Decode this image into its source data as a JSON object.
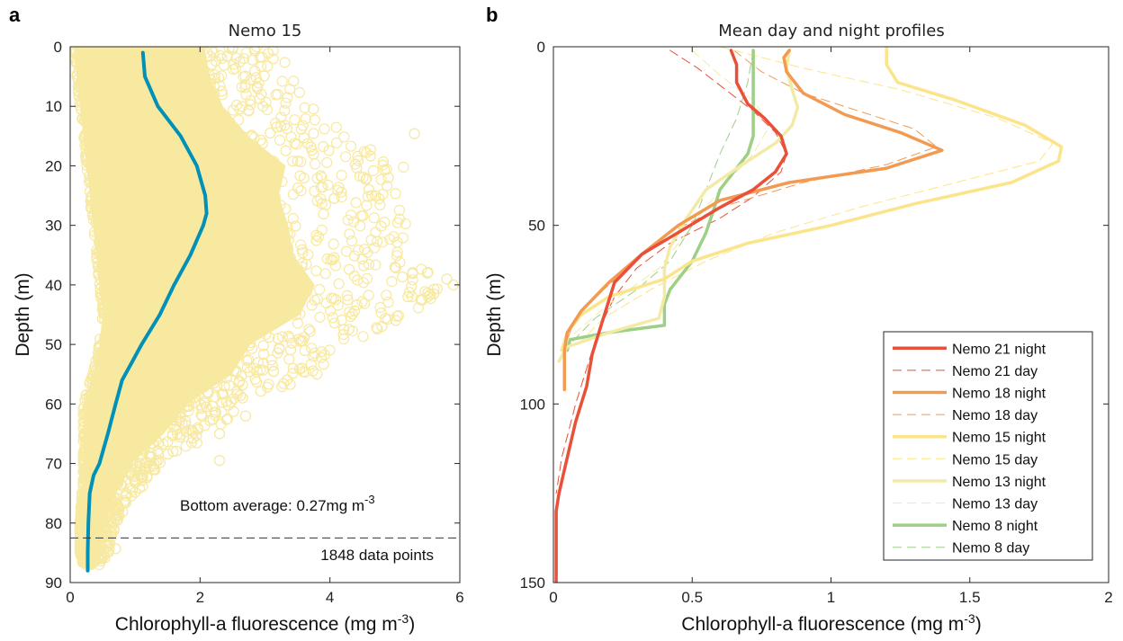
{
  "panel_labels": [
    "a",
    "b"
  ],
  "chart_data": [
    {
      "type": "scatter",
      "panel": "a",
      "title": "Nemo 15",
      "xlabel": "Chlorophyll-a fluorescence (mg m",
      "xlabel_sup": "-3",
      "xlabel_tail": ")",
      "ylabel": "Depth (m)",
      "xlim": [
        0,
        6
      ],
      "ylim": [
        90,
        0
      ],
      "xticks": [
        "0",
        "2",
        "4",
        "6"
      ],
      "yticks": [
        "0",
        "10",
        "20",
        "30",
        "40",
        "50",
        "60",
        "70",
        "80",
        "90"
      ],
      "y_reversed": true,
      "scatter_color": "#f8e9a1",
      "line_color": "#0090b8",
      "mean_profile": {
        "depth": [
          1,
          5,
          10,
          15,
          20,
          25,
          28,
          30,
          35,
          40,
          45,
          50,
          53,
          56,
          60,
          65,
          70,
          72,
          75,
          80,
          85,
          88
        ],
        "value": [
          1.12,
          1.15,
          1.35,
          1.7,
          1.95,
          2.08,
          2.1,
          2.05,
          1.85,
          1.6,
          1.38,
          1.1,
          0.95,
          0.8,
          0.7,
          0.58,
          0.45,
          0.36,
          0.3,
          0.28,
          0.27,
          0.27
        ]
      },
      "scatter_envelope": {
        "depth": [
          0,
          5,
          10,
          15,
          20,
          25,
          30,
          35,
          40,
          45,
          50,
          55,
          58,
          60,
          65,
          70,
          73,
          75,
          80,
          85,
          87
        ],
        "min": [
          0.05,
          0.1,
          0.15,
          0.2,
          0.25,
          0.3,
          0.35,
          0.4,
          0.45,
          0.5,
          0.45,
          0.35,
          0.25,
          0.2,
          0.2,
          0.2,
          0.2,
          0.18,
          0.15,
          0.15,
          0.2
        ],
        "max": [
          3.3,
          3.4,
          3.7,
          4.3,
          5.2,
          5.0,
          5.2,
          5.3,
          5.8,
          5.4,
          4.2,
          3.8,
          3.2,
          2.8,
          2.2,
          1.4,
          1.2,
          1.0,
          0.7,
          0.6,
          0.45
        ]
      },
      "outliers": [
        [
          5.3,
          14.6
        ],
        [
          5.9,
          40
        ],
        [
          5.8,
          39
        ],
        [
          5.6,
          41.5
        ],
        [
          5.5,
          38
        ],
        [
          5.2,
          42
        ],
        [
          4.9,
          22
        ],
        [
          4.7,
          25
        ],
        [
          4.6,
          24
        ],
        [
          3.8,
          55
        ],
        [
          3.2,
          49
        ],
        [
          2.7,
          62
        ],
        [
          2.3,
          69.5
        ],
        [
          2.3,
          65
        ],
        [
          0.7,
          84.3
        ],
        [
          5.4,
          42.5
        ],
        [
          5.0,
          37
        ],
        [
          4.8,
          47
        ]
      ],
      "bottom_line_depth": 82.5,
      "annotation_avg_prefix": "Bottom average: 0.27mg m",
      "annotation_avg_sup": "-3",
      "annotation_count": "1848 data points"
    },
    {
      "type": "line",
      "panel": "b",
      "title": "Mean day and night profiles",
      "xlabel": "Chlorophyll-a fluorescence (mg m",
      "xlabel_sup": "-3",
      "xlabel_tail": ")",
      "ylabel": "Depth (m)",
      "xlim": [
        0,
        2
      ],
      "ylim": [
        150,
        0
      ],
      "xticks": [
        "0",
        "0.5",
        "1",
        "1.5",
        "2"
      ],
      "yticks": [
        "0",
        "50",
        "100",
        "150"
      ],
      "y_reversed": true,
      "legend_position": "bottom-right",
      "series": [
        {
          "name": "Nemo 21 night",
          "color": "#e8503a",
          "style": "solid",
          "width": 3.5,
          "x": [
            0.64,
            0.66,
            0.66,
            0.7,
            0.76,
            0.82,
            0.84,
            0.8,
            0.72,
            0.6,
            0.45,
            0.32,
            0.22,
            0.18,
            0.14,
            0.12,
            0.08,
            0.05,
            0.02,
            0.01,
            0.01,
            0.01,
            0.01
          ],
          "y": [
            1,
            5,
            10,
            16,
            20,
            25,
            30,
            35,
            40,
            45,
            52,
            58,
            66,
            76,
            86,
            95,
            105,
            115,
            125,
            130,
            135,
            140,
            150
          ]
        },
        {
          "name": "Nemo 21 day",
          "color": "#e8503a",
          "style": "dash",
          "width": 1,
          "x": [
            0.42,
            0.52,
            0.62,
            0.72,
            0.8,
            0.84,
            0.82,
            0.72,
            0.6,
            0.42,
            0.3,
            0.22,
            0.16,
            0.12,
            0.08,
            0.03,
            0.01
          ],
          "y": [
            1,
            6,
            12,
            18,
            24,
            30,
            35,
            42,
            48,
            55,
            62,
            70,
            80,
            90,
            100,
            115,
            125
          ]
        },
        {
          "name": "Nemo 18 night",
          "color": "#f29a52",
          "style": "solid",
          "width": 3.5,
          "x": [
            0.85,
            0.83,
            0.84,
            0.9,
            1.05,
            1.25,
            1.4,
            1.2,
            0.85,
            0.6,
            0.45,
            0.32,
            0.2,
            0.1,
            0.05,
            0.04,
            0.04,
            0.04
          ],
          "y": [
            1,
            3,
            7,
            13,
            19,
            24,
            29,
            34,
            38,
            43,
            50,
            58,
            66,
            74,
            80,
            85,
            90,
            96
          ]
        },
        {
          "name": "Nemo 18 day",
          "color": "#f29a52",
          "style": "dash",
          "width": 1,
          "x": [
            0.65,
            0.75,
            0.9,
            1.1,
            1.3,
            1.38,
            1.2,
            0.9,
            0.6,
            0.42,
            0.3,
            0.18,
            0.08,
            0.04
          ],
          "y": [
            1,
            7,
            13,
            18,
            23,
            28,
            33,
            38,
            45,
            52,
            60,
            68,
            76,
            84
          ]
        },
        {
          "name": "Nemo 15 night",
          "color": "#fbe48a",
          "style": "solid",
          "width": 3.5,
          "x": [
            1.2,
            1.2,
            1.24,
            1.45,
            1.7,
            1.83,
            1.82,
            1.65,
            1.3,
            1.0,
            0.7,
            0.5,
            0.4,
            0.2,
            0.1,
            0.05,
            0.03
          ],
          "y": [
            0,
            5,
            10,
            15,
            22,
            28,
            32,
            38,
            44,
            50,
            55,
            60,
            65,
            70,
            75,
            80,
            85
          ]
        },
        {
          "name": "Nemo 15 day",
          "color": "#fbe48a",
          "style": "dash",
          "width": 1,
          "x": [
            0.6,
            0.9,
            1.25,
            1.6,
            1.8,
            1.75,
            1.45,
            1.1,
            0.8,
            0.55,
            0.35,
            0.18,
            0.08
          ],
          "y": [
            0,
            6,
            12,
            20,
            27,
            32,
            38,
            45,
            52,
            60,
            68,
            76,
            84
          ]
        },
        {
          "name": "Nemo 13 night",
          "color": "#f3eba5",
          "style": "solid",
          "width": 3.5,
          "x": [
            0.85,
            0.84,
            0.86,
            0.88,
            0.86,
            0.8,
            0.68,
            0.55,
            0.48,
            0.42,
            0.4,
            0.4,
            0.4,
            0.38,
            0.2,
            0.05,
            0.02
          ],
          "y": [
            1,
            6,
            12,
            17,
            22,
            27,
            33,
            40,
            48,
            56,
            62,
            66,
            70,
            76,
            80,
            84,
            88
          ]
        },
        {
          "name": "Nemo 13 day",
          "color": "#f3eba5",
          "style": "dash",
          "width": 1,
          "x": [
            0.5,
            0.6,
            0.72,
            0.78,
            0.72,
            0.6,
            0.48,
            0.38,
            0.2,
            0.05
          ],
          "y": [
            1,
            8,
            15,
            22,
            30,
            40,
            52,
            62,
            72,
            82
          ]
        },
        {
          "name": "Nemo 8 night",
          "color": "#9dcf86",
          "style": "solid",
          "width": 3.5,
          "x": [
            0.72,
            0.72,
            0.72,
            0.72,
            0.72,
            0.72,
            0.7,
            0.65,
            0.6,
            0.58,
            0.55,
            0.5,
            0.42,
            0.4,
            0.4,
            0.2,
            0.06,
            0.05
          ],
          "y": [
            1,
            5,
            10,
            15,
            20,
            25,
            30,
            35,
            40,
            45,
            52,
            60,
            68,
            72,
            78,
            80,
            82,
            85
          ]
        },
        {
          "name": "Nemo 8 day",
          "color": "#9dcf86",
          "style": "dash",
          "width": 1,
          "x": [
            0.72,
            0.7,
            0.66,
            0.6,
            0.55,
            0.5,
            0.42,
            0.3,
            0.15,
            0.05
          ],
          "y": [
            1,
            10,
            20,
            30,
            40,
            50,
            60,
            68,
            76,
            84
          ]
        }
      ]
    }
  ]
}
